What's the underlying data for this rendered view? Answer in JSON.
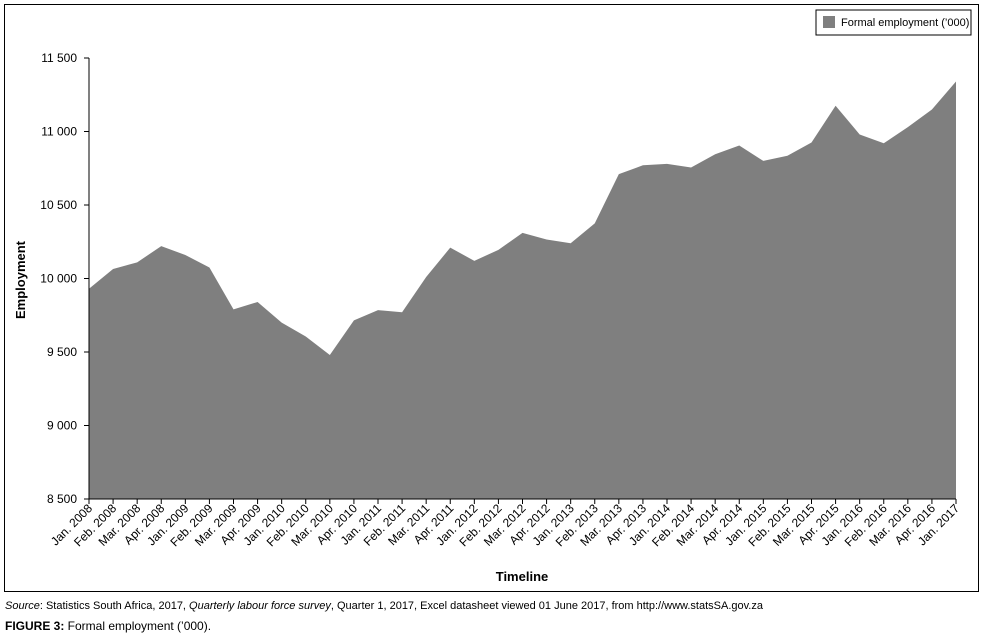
{
  "chart_data": {
    "type": "area",
    "title": "",
    "xlabel": "Timeline",
    "ylabel": "Employment",
    "ylim": [
      8500,
      11500
    ],
    "yticks": [
      8500,
      9000,
      9500,
      10000,
      10500,
      11000,
      11500
    ],
    "ytick_labels": [
      "8 500",
      "9 000",
      "9 500",
      "10 000",
      "10 500",
      "11 000",
      "11 500"
    ],
    "grid": false,
    "legend_position": "top-right",
    "color": "#7f7f7f",
    "categories": [
      "Jan. 2008",
      "Feb. 2008",
      "Mar. 2008",
      "Apr. 2008",
      "Jan. 2009",
      "Feb. 2009",
      "Mar. 2009",
      "Apr. 2009",
      "Jan. 2010",
      "Feb. 2010",
      "Mar. 2010",
      "Apr. 2010",
      "Jan. 2011",
      "Feb. 2011",
      "Mar. 2011",
      "Apr. 2011",
      "Jan. 2012",
      "Feb. 2012",
      "Mar. 2012",
      "Apr. 2012",
      "Jan. 2013",
      "Feb. 2013",
      "Mar. 2013",
      "Apr. 2013",
      "Jan. 2014",
      "Feb. 2014",
      "Mar. 2014",
      "Apr. 2014",
      "Jan. 2015",
      "Feb. 2015",
      "Mar. 2015",
      "Apr. 2015",
      "Jan. 2016",
      "Feb. 2016",
      "Mar. 2016",
      "Apr. 2016",
      "Jan. 2017"
    ],
    "series": [
      {
        "name": "Formal employment (’000)",
        "values": [
          9930,
          10065,
          10110,
          10220,
          10160,
          10075,
          9790,
          9840,
          9700,
          9605,
          9480,
          9715,
          9785,
          9770,
          10010,
          10210,
          10120,
          10195,
          10310,
          10265,
          10240,
          10375,
          10710,
          10770,
          10780,
          10755,
          10845,
          10905,
          10800,
          10835,
          10925,
          11175,
          10980,
          10920,
          11030,
          11150,
          11340
        ]
      }
    ]
  },
  "footer": {
    "source_label": "Source",
    "source_part1": ": Statistics South Africa, 2017, ",
    "source_title": "Quarterly labour force survey",
    "source_part2": ", Quarter 1, 2017, Excel datasheet viewed 01 June 2017, from http://www.statsSA.gov.za",
    "caption_label": "FIGURE 3:",
    "caption_text": " Formal employment (’000)."
  }
}
